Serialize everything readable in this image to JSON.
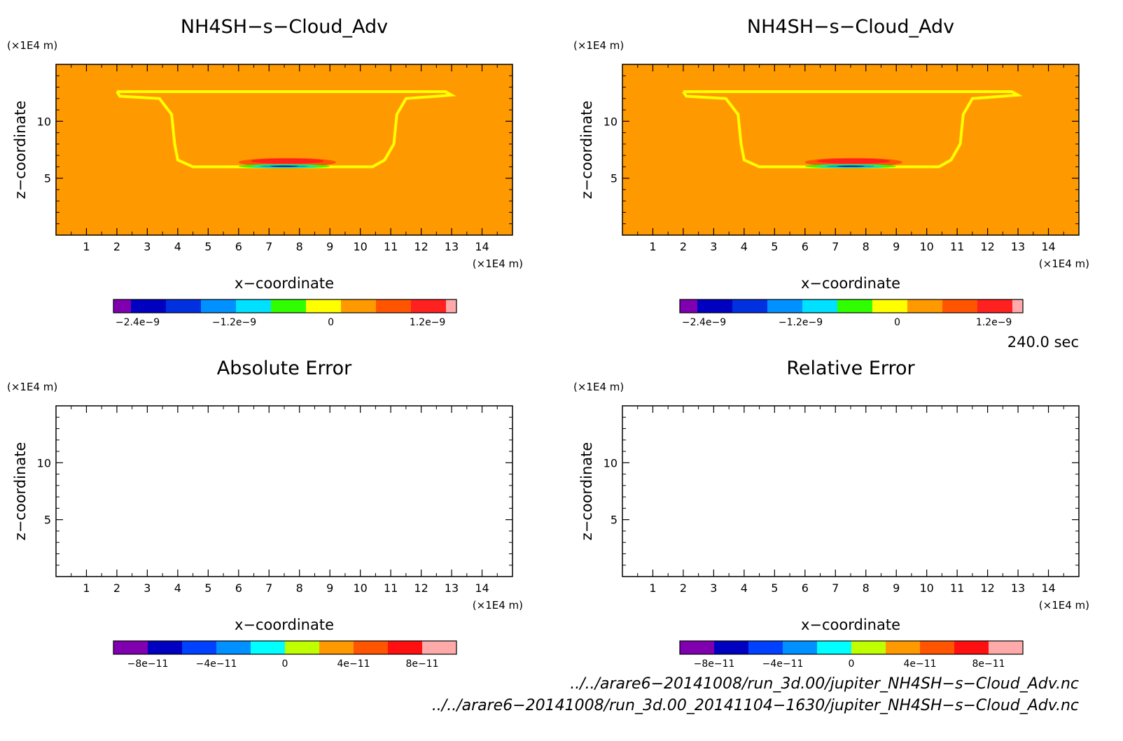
{
  "chart_data": [
    {
      "type": "heatmap",
      "title": "NH4SH−s−Cloud_Adv",
      "xlabel": "x−coordinate",
      "ylabel": "z−coordinate",
      "x_unit": "(×1E4 m)",
      "y_unit": "(×1E4 m)",
      "xlim": [
        0,
        15
      ],
      "ylim": [
        0,
        15
      ],
      "x_ticks": [
        1,
        2,
        3,
        4,
        5,
        6,
        7,
        8,
        9,
        10,
        11,
        12,
        13,
        14
      ],
      "y_ticks": [
        5,
        10
      ],
      "field": "cloud",
      "colorbar": {
        "colors": [
          "#8000b0",
          "#0000c0",
          "#0030e0",
          "#0090ff",
          "#00e0ff",
          "#30ff00",
          "#ffff00",
          "#ff9900",
          "#ff5500",
          "#ff2020",
          "#ffaaaa"
        ],
        "widths": [
          0.5,
          1,
          1,
          1,
          1,
          1,
          1,
          1,
          1,
          1,
          0.3
        ],
        "tick_labels": [
          "−2.4e−9",
          "−1.2e−9",
          "0",
          "1.2e−9"
        ],
        "tick_values": [
          -2.4e-09,
          -1.2e-09,
          0,
          1.2e-09
        ],
        "range": [
          -2.7e-09,
          1.56e-09
        ]
      }
    },
    {
      "type": "heatmap",
      "title": "NH4SH−s−Cloud_Adv",
      "xlabel": "x−coordinate",
      "ylabel": "z−coordinate",
      "x_unit": "(×1E4 m)",
      "y_unit": "(×1E4 m)",
      "xlim": [
        0,
        15
      ],
      "ylim": [
        0,
        15
      ],
      "x_ticks": [
        1,
        2,
        3,
        4,
        5,
        6,
        7,
        8,
        9,
        10,
        11,
        12,
        13,
        14
      ],
      "y_ticks": [
        5,
        10
      ],
      "field": "cloud",
      "colorbar": {
        "colors": [
          "#8000b0",
          "#0000c0",
          "#0030e0",
          "#0090ff",
          "#00e0ff",
          "#30ff00",
          "#ffff00",
          "#ff9900",
          "#ff5500",
          "#ff2020",
          "#ffaaaa"
        ],
        "widths": [
          0.5,
          1,
          1,
          1,
          1,
          1,
          1,
          1,
          1,
          1,
          0.3
        ],
        "tick_labels": [
          "−2.4e−9",
          "−1.2e−9",
          "0",
          "1.2e−9"
        ],
        "tick_values": [
          -2.4e-09,
          -1.2e-09,
          0,
          1.2e-09
        ],
        "range": [
          -2.7e-09,
          1.56e-09
        ]
      }
    },
    {
      "type": "heatmap",
      "title": "Absolute Error",
      "xlabel": "x−coordinate",
      "ylabel": "z−coordinate",
      "x_unit": "(×1E4 m)",
      "y_unit": "(×1E4 m)",
      "xlim": [
        0,
        15
      ],
      "ylim": [
        0,
        15
      ],
      "x_ticks": [
        1,
        2,
        3,
        4,
        5,
        6,
        7,
        8,
        9,
        10,
        11,
        12,
        13,
        14
      ],
      "y_ticks": [
        5,
        10
      ],
      "field": "empty",
      "colorbar": {
        "colors": [
          "#8000b0",
          "#0000c0",
          "#0040ff",
          "#0090ff",
          "#00ffff",
          "#c0ff00",
          "#ff9900",
          "#ff5500",
          "#ff1010",
          "#ffaaaa"
        ],
        "widths": [
          1,
          1,
          1,
          1,
          1,
          1,
          1,
          1,
          1,
          1
        ],
        "tick_labels": [
          "−8e−11",
          "−4e−11",
          "0",
          "4e−11",
          "8e−11"
        ],
        "tick_values": [
          -8e-11,
          -4e-11,
          0,
          4e-11,
          8e-11
        ],
        "range": [
          -1e-10,
          1e-10
        ]
      }
    },
    {
      "type": "heatmap",
      "title": "Relative Error",
      "xlabel": "x−coordinate",
      "ylabel": "z−coordinate",
      "x_unit": "(×1E4 m)",
      "y_unit": "(×1E4 m)",
      "xlim": [
        0,
        15
      ],
      "ylim": [
        0,
        15
      ],
      "x_ticks": [
        1,
        2,
        3,
        4,
        5,
        6,
        7,
        8,
        9,
        10,
        11,
        12,
        13,
        14
      ],
      "y_ticks": [
        5,
        10
      ],
      "field": "empty",
      "colorbar": {
        "colors": [
          "#8000b0",
          "#0000c0",
          "#0040ff",
          "#0090ff",
          "#00ffff",
          "#c0ff00",
          "#ff9900",
          "#ff5500",
          "#ff1010",
          "#ffaaaa"
        ],
        "widths": [
          1,
          1,
          1,
          1,
          1,
          1,
          1,
          1,
          1,
          1
        ],
        "tick_labels": [
          "−8e−11",
          "−4e−11",
          "0",
          "4e−11",
          "8e−11"
        ],
        "tick_values": [
          -8e-11,
          -4e-11,
          0,
          4e-11,
          8e-11
        ],
        "range": [
          -1e-10,
          1e-10
        ]
      }
    }
  ],
  "cloud": {
    "background": "#ff9900",
    "outline": "#ffff00",
    "outline_points": [
      [
        2.0,
        12.6
      ],
      [
        12.8,
        12.6
      ],
      [
        13.0,
        12.3
      ],
      [
        11.5,
        12.0
      ],
      [
        11.2,
        10.6
      ],
      [
        11.1,
        8.0
      ],
      [
        10.8,
        6.6
      ],
      [
        10.4,
        6.0
      ],
      [
        4.5,
        6.0
      ],
      [
        4.0,
        6.6
      ],
      [
        3.9,
        8.0
      ],
      [
        3.8,
        10.6
      ],
      [
        3.4,
        12.0
      ],
      [
        2.1,
        12.2
      ]
    ],
    "bands": [
      {
        "color": "#ff5500",
        "cx": 7.6,
        "cy": 6.4,
        "rx": 1.6,
        "ry": 0.38
      },
      {
        "color": "#ff2020",
        "cx": 7.6,
        "cy": 6.5,
        "rx": 1.2,
        "ry": 0.22
      },
      {
        "color": "#30ff00",
        "cx": 7.5,
        "cy": 6.05,
        "rx": 1.5,
        "ry": 0.18
      },
      {
        "color": "#00e0ff",
        "cx": 7.5,
        "cy": 6.05,
        "rx": 1.1,
        "ry": 0.12
      },
      {
        "color": "#0090ff",
        "cx": 7.5,
        "cy": 6.05,
        "rx": 0.8,
        "ry": 0.08
      },
      {
        "color": "#0000c0",
        "cx": 7.5,
        "cy": 6.05,
        "rx": 0.45,
        "ry": 0.05
      }
    ]
  },
  "time_label": "240.0 sec",
  "file_paths": [
    "../../arare6−20141008/run_3d.00/jupiter_NH4SH−s−Cloud_Adv.nc",
    "../../arare6−20141008/run_3d.00_20141104−1630/jupiter_NH4SH−s−Cloud_Adv.nc"
  ]
}
